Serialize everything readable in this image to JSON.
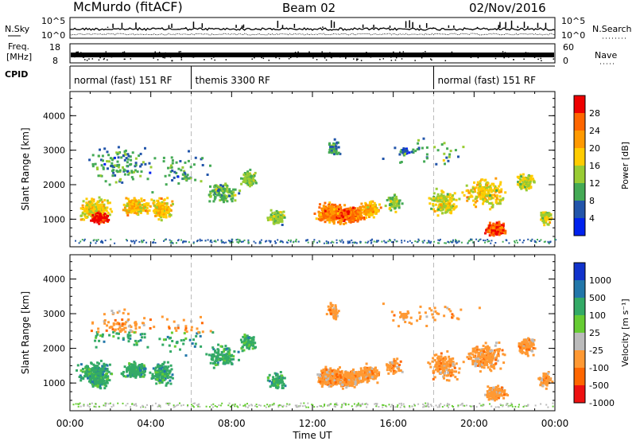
{
  "header": {
    "station": "McMurdo (fitACF)",
    "beam": "Beam 02",
    "date": "02/Nov/2016"
  },
  "strip_labels": {
    "left_top": "N.Sky",
    "left_mid_1": "Freq.",
    "left_mid_2": "[MHz]",
    "left_bottom": "CPID",
    "right_top": "N.Search",
    "right_mid": "Nave",
    "noise_ticks_left": [
      "10^5",
      "10^0"
    ],
    "noise_ticks_right": [
      "10^5",
      "10^0"
    ],
    "freq_ticks_left": [
      "18",
      "8"
    ],
    "freq_ticks_right": [
      "60",
      "0"
    ]
  },
  "cpid_segments": [
    {
      "label": "normal (fast) 151 RF",
      "start": "00:00"
    },
    {
      "label": "themis 3300 RF",
      "start": "06:00"
    },
    {
      "label": "normal (fast) 151 RF",
      "start": "18:00"
    }
  ],
  "chart_data": [
    {
      "type": "heatmap",
      "name": "power",
      "ylabel": "Slant Range [km]",
      "yticks": [
        "1000",
        "2000",
        "3000",
        "4000"
      ],
      "ylim": [
        200,
        4700
      ],
      "xlim": [
        0,
        24
      ],
      "colorbar_label": "Power [dB]",
      "colorbar_ticks": [
        "4",
        "8",
        "12",
        "16",
        "20",
        "24",
        "28"
      ],
      "colors": [
        "#0022ee",
        "#2255aa",
        "#44aa55",
        "#99cc33",
        "#ffcc00",
        "#ff9900",
        "#ff6600",
        "#ee0000"
      ]
    },
    {
      "type": "heatmap",
      "name": "velocity",
      "ylabel": "Slant Range [km]",
      "yticks": [
        "1000",
        "2000",
        "3000",
        "4000"
      ],
      "ylim": [
        200,
        4700
      ],
      "xlim": [
        0,
        24
      ],
      "xlabel": "Time UT",
      "xticks": [
        "00:00",
        "04:00",
        "08:00",
        "12:00",
        "16:00",
        "20:00",
        "00:00"
      ],
      "colorbar_label": "Velocity [m s⁻¹]",
      "colorbar_ticks": [
        "1000",
        "500",
        "100",
        "25",
        "-25",
        "-100",
        "-500",
        "-1000"
      ],
      "colors": [
        "#1133cc",
        "#2277aa",
        "#33aa66",
        "#66cc33",
        "#bbbbbb",
        "#ff9933",
        "#ff6600",
        "#ee1111"
      ]
    }
  ]
}
